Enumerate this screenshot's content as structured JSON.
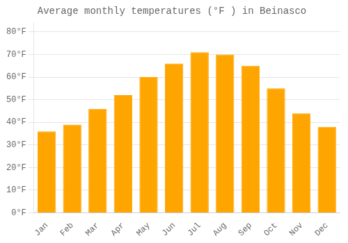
{
  "chart_data": {
    "type": "bar",
    "title": "Average monthly temperatures (°F ) in Beinasco",
    "categories": [
      "Jan",
      "Feb",
      "Mar",
      "Apr",
      "May",
      "Jun",
      "Jul",
      "Aug",
      "Sep",
      "Oct",
      "Nov",
      "Dec"
    ],
    "values": [
      36,
      39,
      46,
      52,
      60,
      66,
      71,
      70,
      65,
      55,
      44,
      38
    ],
    "color": "#FFA500",
    "ylim": [
      0,
      84
    ],
    "yticks": [
      {
        "value": 0,
        "label": "0°F"
      },
      {
        "value": 10,
        "label": "10°F"
      },
      {
        "value": 20,
        "label": "20°F"
      },
      {
        "value": 30,
        "label": "30°F"
      },
      {
        "value": 40,
        "label": "40°F"
      },
      {
        "value": 50,
        "label": "50°F"
      },
      {
        "value": 60,
        "label": "60°F"
      },
      {
        "value": 70,
        "label": "70°F"
      },
      {
        "value": 80,
        "label": "80°F"
      }
    ],
    "grid": true
  }
}
